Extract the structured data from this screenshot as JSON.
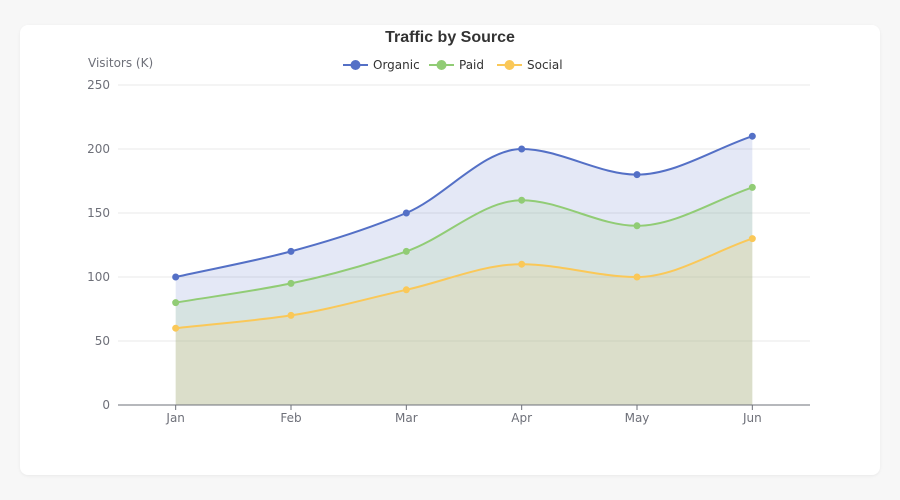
{
  "chart_data": {
    "type": "area",
    "title": "Traffic by Source",
    "ylabel": "Visitors (K)",
    "xlabel": "",
    "categories": [
      "Jan",
      "Feb",
      "Mar",
      "Apr",
      "May",
      "Jun"
    ],
    "ylim": [
      0,
      250
    ],
    "yticks": [
      0,
      50,
      100,
      150,
      200,
      250
    ],
    "grid": true,
    "smooth": true,
    "legend_position": "top",
    "series": [
      {
        "name": "Organic",
        "color": "#5470c6",
        "values": [
          100,
          120,
          150,
          200,
          180,
          210
        ]
      },
      {
        "name": "Paid",
        "color": "#91cc75",
        "values": [
          80,
          95,
          120,
          160,
          140,
          170
        ]
      },
      {
        "name": "Social",
        "color": "#fac858",
        "values": [
          60,
          70,
          90,
          110,
          100,
          130
        ]
      }
    ]
  }
}
